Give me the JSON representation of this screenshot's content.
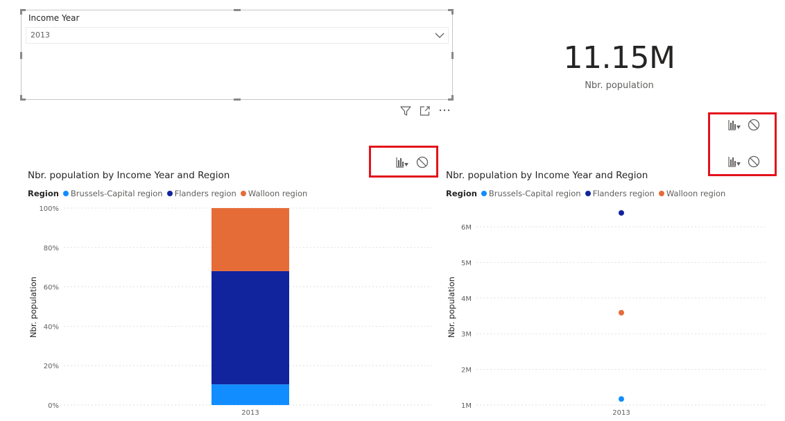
{
  "slicer": {
    "title": "Income Year",
    "selected_value": "2013",
    "icons": [
      "filter-icon",
      "focus-mode-icon",
      "more-options-icon"
    ]
  },
  "card": {
    "value": "11.15M",
    "label": "Nbr. population"
  },
  "toolbar_icons": [
    "drill-down-icon",
    "block-icon"
  ],
  "colors": {
    "brussels": "#118dff",
    "flanders": "#12239e",
    "walloon": "#e66c37",
    "highlight_box": "#e3121b"
  },
  "chart_left": {
    "title": "Nbr. population by Income Year and Region",
    "legend_title": "Region",
    "legend": [
      "Brussels-Capital region",
      "Flanders region",
      "Walloon region"
    ],
    "ylabel": "Nbr. population",
    "y_ticks": [
      "0%",
      "20%",
      "40%",
      "60%",
      "80%",
      "100%"
    ],
    "x_ticks": [
      "2013"
    ]
  },
  "chart_right": {
    "title": "Nbr. population by Income Year and Region",
    "legend_title": "Region",
    "legend": [
      "Brussels-Capital region",
      "Flanders region",
      "Walloon region"
    ],
    "ylabel": "Nbr. population",
    "y_ticks": [
      "1M",
      "2M",
      "3M",
      "4M",
      "5M",
      "6M"
    ],
    "x_ticks": [
      "2013"
    ]
  },
  "chart_data": [
    {
      "type": "bar",
      "stacked": "100%",
      "title": "Nbr. population by Income Year and Region",
      "categories": [
        "2013"
      ],
      "series": [
        {
          "name": "Brussels-Capital region",
          "values": [
            0.105
          ]
        },
        {
          "name": "Flanders region",
          "values": [
            0.575
          ]
        },
        {
          "name": "Walloon region",
          "values": [
            0.32
          ]
        }
      ],
      "xlabel": "",
      "ylabel": "Nbr. population",
      "ylim": [
        0,
        1
      ],
      "grid": true,
      "legend": "top-left"
    },
    {
      "type": "scatter",
      "title": "Nbr. population by Income Year and Region",
      "categories": [
        "2013"
      ],
      "series": [
        {
          "name": "Brussels-Capital region",
          "values": [
            1170000
          ]
        },
        {
          "name": "Flanders region",
          "values": [
            6390000
          ]
        },
        {
          "name": "Walloon region",
          "values": [
            3590000
          ]
        }
      ],
      "xlabel": "",
      "ylabel": "Nbr. population",
      "ylim": [
        1000000,
        6500000
      ],
      "grid": true,
      "legend": "top-left"
    }
  ]
}
